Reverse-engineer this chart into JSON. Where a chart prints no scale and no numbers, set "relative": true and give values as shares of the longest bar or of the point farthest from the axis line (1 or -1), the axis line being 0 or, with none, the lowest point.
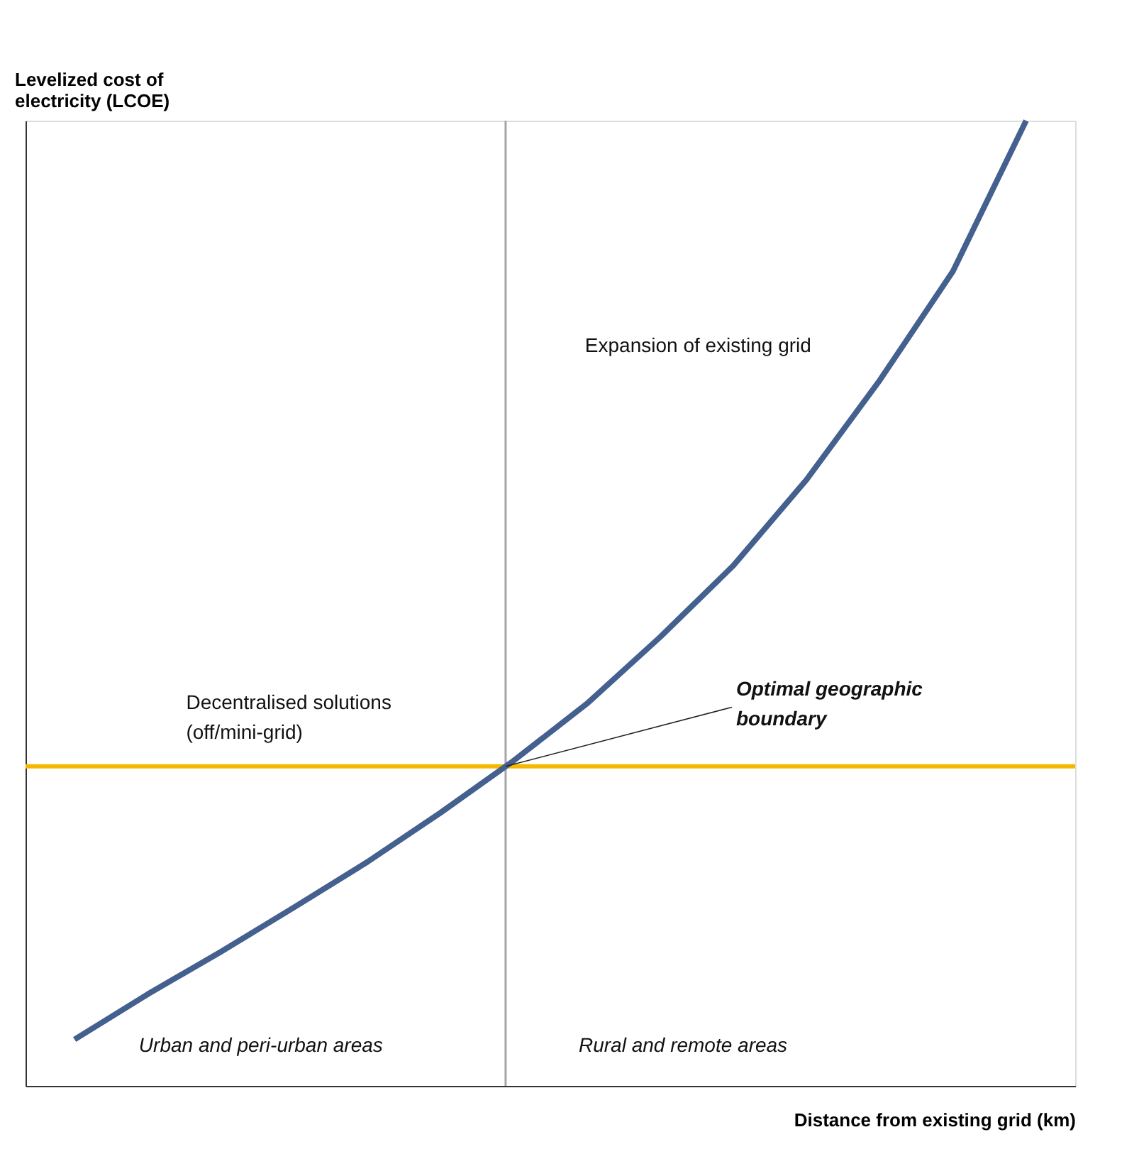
{
  "chart_data": {
    "type": "line",
    "relative": true,
    "xlabel": "Distance from existing grid (km)",
    "ylabel": "Levelized cost of\nelectricity (LCOE)",
    "categories": [
      null,
      null,
      null,
      null,
      null,
      null,
      null,
      null,
      null,
      null,
      null,
      null,
      null,
      null
    ],
    "series": [
      {
        "color": "#44608f",
        "values": [
          0.048,
          0.095,
          0.139,
          0.185,
          0.232,
          0.283,
          0.337,
          0.396,
          0.465,
          0.539,
          0.628,
          0.731,
          0.844,
          1.0
        ]
      }
    ],
    "marker": "none",
    "line_style": "solid",
    "ref_lines": [
      {
        "axis": "y",
        "value": 0.331,
        "color": "#f5b800",
        "line_style": "solid"
      }
    ],
    "annotations": [
      "Expansion of existing grid",
      "Decentralised solutions\n(off/mini-grid)",
      "Optimal geographic\nboundary",
      "Urban and peri-urban areas",
      "Rural and remote areas"
    ]
  }
}
